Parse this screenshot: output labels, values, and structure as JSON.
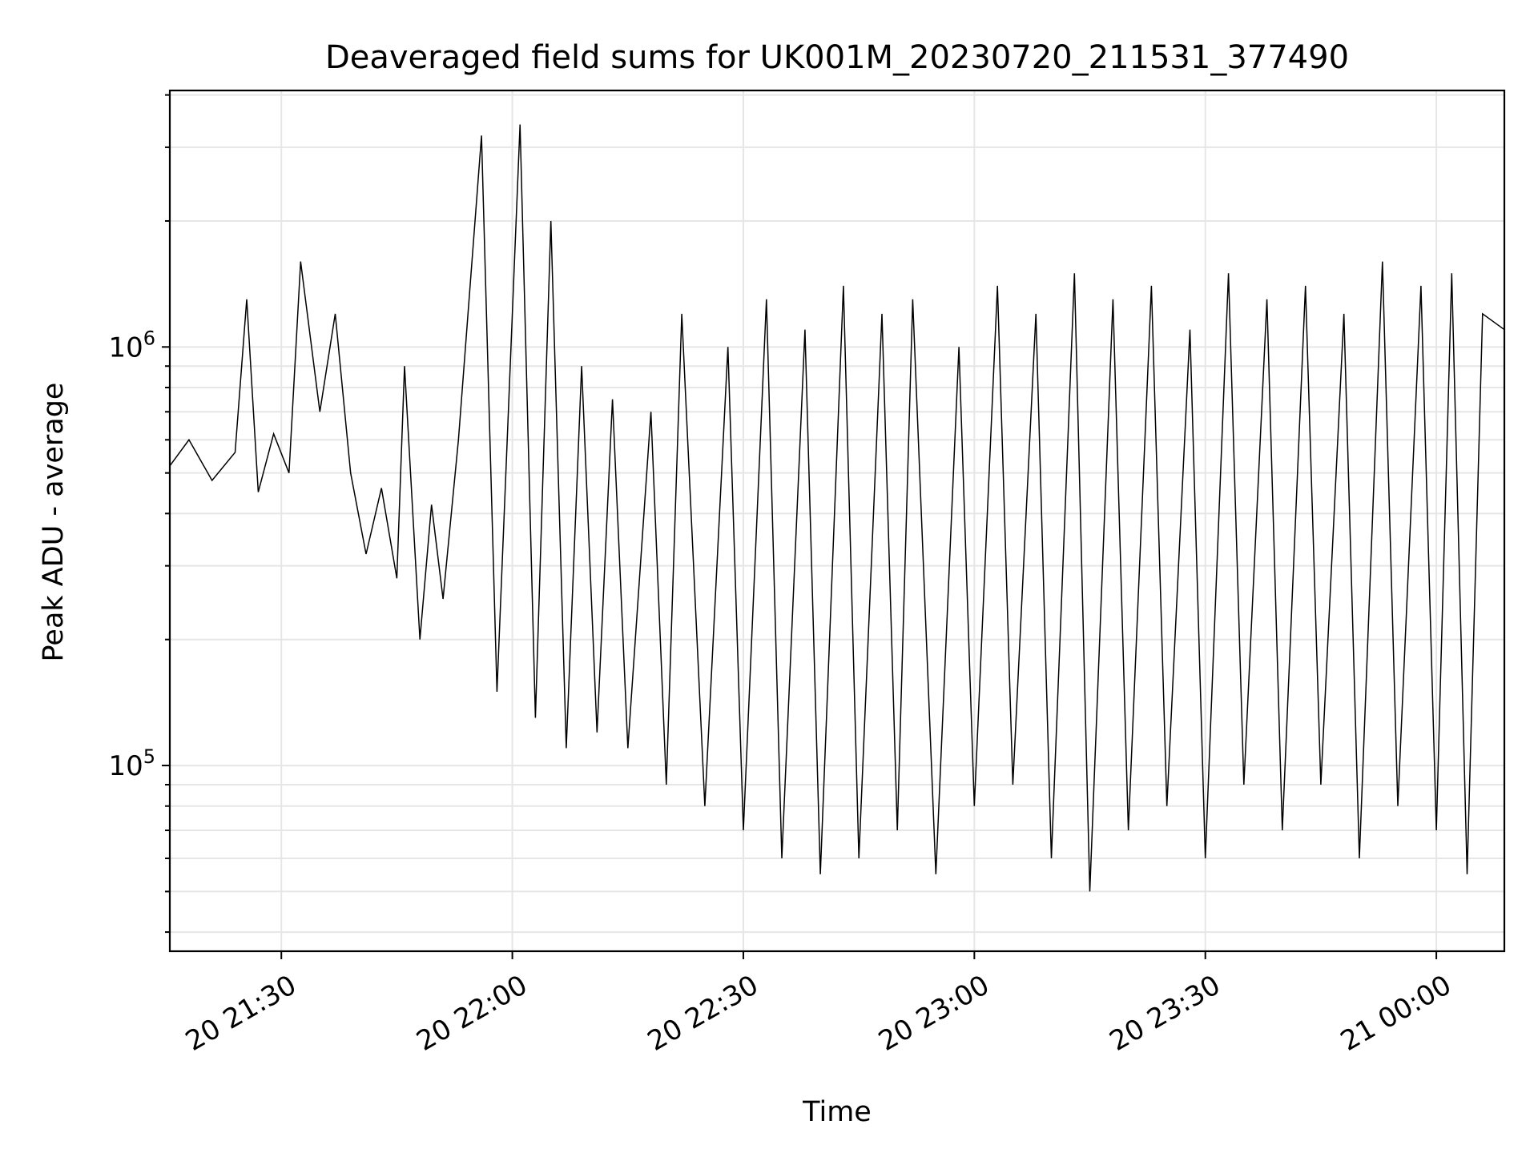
{
  "chart_data": {
    "type": "line",
    "title": "Deaveraged field sums for UK001M_20230720_211531_377490",
    "xlabel": "Time",
    "ylabel": "Peak ADU - average",
    "y_scale": "log",
    "ylim": [
      36000,
      4100000
    ],
    "xlim": [
      "2023-07-20 21:15:31",
      "2023-07-21 00:08:50"
    ],
    "grid": true,
    "x_ticks": [
      {
        "label": "20 21:30",
        "time": "2023-07-20 21:30:00"
      },
      {
        "label": "20 22:00",
        "time": "2023-07-20 22:00:00"
      },
      {
        "label": "20 22:30",
        "time": "2023-07-20 22:30:00"
      },
      {
        "label": "20 23:00",
        "time": "2023-07-20 23:00:00"
      },
      {
        "label": "20 23:30",
        "time": "2023-07-20 23:30:00"
      },
      {
        "label": "21 00:00",
        "time": "2023-07-21 00:00:00"
      }
    ],
    "y_ticks": [
      {
        "base": "10",
        "exp": "5",
        "value": 100000
      },
      {
        "base": "10",
        "exp": "6",
        "value": 1000000
      }
    ],
    "series": [
      {
        "color": "#000000",
        "x": [
          "2023-07-20 21:15:31",
          "2023-07-20 21:18:00",
          "2023-07-20 21:21:00",
          "2023-07-20 21:24:00",
          "2023-07-20 21:25:30",
          "2023-07-20 21:27:00",
          "2023-07-20 21:29:00",
          "2023-07-20 21:31:00",
          "2023-07-20 21:32:30",
          "2023-07-20 21:35:00",
          "2023-07-20 21:37:00",
          "2023-07-20 21:39:00",
          "2023-07-20 21:41:00",
          "2023-07-20 21:43:00",
          "2023-07-20 21:45:00",
          "2023-07-20 21:46:00",
          "2023-07-20 21:48:00",
          "2023-07-20 21:49:30",
          "2023-07-20 21:51:00",
          "2023-07-20 21:53:00",
          "2023-07-20 21:56:00",
          "2023-07-20 21:58:00",
          "2023-07-20 22:01:00",
          "2023-07-20 22:03:00",
          "2023-07-20 22:05:00",
          "2023-07-20 22:07:00",
          "2023-07-20 22:09:00",
          "2023-07-20 22:11:00",
          "2023-07-20 22:13:00",
          "2023-07-20 22:15:00",
          "2023-07-20 22:18:00",
          "2023-07-20 22:20:00",
          "2023-07-20 22:22:00",
          "2023-07-20 22:25:00",
          "2023-07-20 22:28:00",
          "2023-07-20 22:30:00",
          "2023-07-20 22:33:00",
          "2023-07-20 22:35:00",
          "2023-07-20 22:38:00",
          "2023-07-20 22:40:00",
          "2023-07-20 22:43:00",
          "2023-07-20 22:45:00",
          "2023-07-20 22:48:00",
          "2023-07-20 22:50:00",
          "2023-07-20 22:52:00",
          "2023-07-20 22:55:00",
          "2023-07-20 22:58:00",
          "2023-07-20 23:00:00",
          "2023-07-20 23:03:00",
          "2023-07-20 23:05:00",
          "2023-07-20 23:08:00",
          "2023-07-20 23:10:00",
          "2023-07-20 23:13:00",
          "2023-07-20 23:15:00",
          "2023-07-20 23:18:00",
          "2023-07-20 23:20:00",
          "2023-07-20 23:23:00",
          "2023-07-20 23:25:00",
          "2023-07-20 23:28:00",
          "2023-07-20 23:30:00",
          "2023-07-20 23:33:00",
          "2023-07-20 23:35:00",
          "2023-07-20 23:38:00",
          "2023-07-20 23:40:00",
          "2023-07-20 23:43:00",
          "2023-07-20 23:45:00",
          "2023-07-20 23:48:00",
          "2023-07-20 23:50:00",
          "2023-07-20 23:53:00",
          "2023-07-20 23:55:00",
          "2023-07-20 23:58:00",
          "2023-07-21 00:00:00",
          "2023-07-21 00:02:00",
          "2023-07-21 00:04:00",
          "2023-07-21 00:06:00",
          "2023-07-21 00:08:50"
        ],
        "y": [
          520000,
          600000,
          480000,
          560000,
          1300000,
          450000,
          620000,
          500000,
          1600000,
          700000,
          1200000,
          500000,
          320000,
          460000,
          280000,
          900000,
          200000,
          420000,
          250000,
          600000,
          3200000,
          150000,
          3400000,
          130000,
          2000000,
          110000,
          900000,
          120000,
          750000,
          110000,
          700000,
          90000,
          1200000,
          80000,
          1000000,
          70000,
          1300000,
          60000,
          1100000,
          55000,
          1400000,
          60000,
          1200000,
          70000,
          1300000,
          55000,
          1000000,
          80000,
          1400000,
          90000,
          1200000,
          60000,
          1500000,
          50000,
          1300000,
          70000,
          1400000,
          80000,
          1100000,
          60000,
          1500000,
          90000,
          1300000,
          70000,
          1400000,
          90000,
          1200000,
          60000,
          1600000,
          80000,
          1400000,
          70000,
          1500000,
          55000,
          1200000,
          1100000
        ]
      }
    ]
  }
}
